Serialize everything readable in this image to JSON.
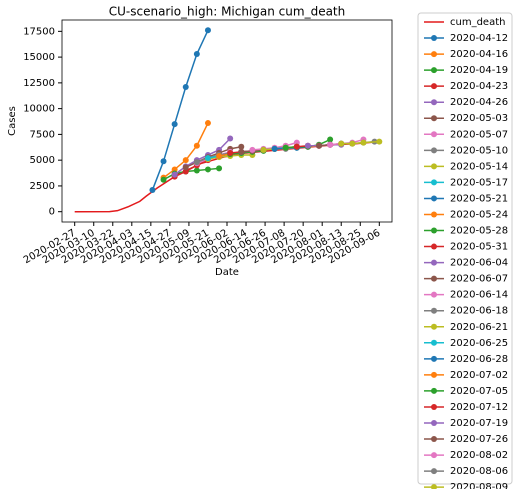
{
  "chart_data": {
    "type": "line",
    "title": "CU-scenario_high: Michigan cum_death",
    "xlabel": "Date",
    "ylabel": "Cases",
    "xlim": [
      "2020-02-19",
      "2020-09-14"
    ],
    "ylim": [
      -1000,
      18600
    ],
    "xticks": [
      "2020-02-27",
      "2020-03-10",
      "2020-03-22",
      "2020-04-03",
      "2020-04-15",
      "2020-04-27",
      "2020-05-09",
      "2020-05-21",
      "2020-06-02",
      "2020-06-14",
      "2020-06-26",
      "2020-07-08",
      "2020-07-20",
      "2020-08-01",
      "2020-08-13",
      "2020-08-25",
      "2020-09-06"
    ],
    "yticks": [
      0,
      2500,
      5000,
      7500,
      10000,
      12500,
      15000,
      17500
    ],
    "grid": false,
    "legend": "outside upper right",
    "series": [
      {
        "name": "cum_death",
        "color": "#e31a1c",
        "markers": false,
        "x": [
          "2020-02-27",
          "2020-03-20",
          "2020-03-25",
          "2020-04-01",
          "2020-04-08",
          "2020-04-12",
          "2020-04-19",
          "2020-04-26",
          "2020-05-03",
          "2020-05-10",
          "2020-05-17",
          "2020-05-31",
          "2020-06-14",
          "2020-06-28",
          "2020-07-12",
          "2020-07-26",
          "2020-08-09",
          "2020-08-23",
          "2020-09-06"
        ],
        "values": [
          0,
          10,
          100,
          500,
          1000,
          1500,
          2300,
          3000,
          3700,
          4200,
          4700,
          5300,
          5700,
          5900,
          6100,
          6300,
          6500,
          6600,
          6800
        ]
      },
      {
        "name": "2020-04-12",
        "color": "#1f77b4",
        "markers": true,
        "x": [
          "2020-04-16",
          "2020-04-23",
          "2020-04-30",
          "2020-05-07",
          "2020-05-14",
          "2020-05-21"
        ],
        "values": [
          2100,
          4900,
          8500,
          12100,
          15300,
          17600
        ]
      },
      {
        "name": "2020-04-16",
        "color": "#ff7f0e",
        "markers": true,
        "x": [
          "2020-04-23",
          "2020-04-30",
          "2020-05-07",
          "2020-05-14",
          "2020-05-21"
        ],
        "values": [
          3300,
          4100,
          5000,
          6400,
          8600
        ]
      },
      {
        "name": "2020-04-19",
        "color": "#2ca02c",
        "markers": true,
        "x": [
          "2020-04-23",
          "2020-04-30",
          "2020-05-07",
          "2020-05-14",
          "2020-05-21",
          "2020-05-28"
        ],
        "values": [
          3100,
          3700,
          3900,
          4000,
          4100,
          4200
        ]
      },
      {
        "name": "2020-04-23",
        "color": "#d62728",
        "markers": true,
        "x": [
          "2020-04-30",
          "2020-05-07",
          "2020-05-14",
          "2020-05-21"
        ],
        "values": [
          3400,
          3900,
          4500,
          5000
        ]
      },
      {
        "name": "2020-04-26",
        "color": "#9467bd",
        "markers": true,
        "x": [
          "2020-04-30",
          "2020-05-07",
          "2020-05-14",
          "2020-05-21",
          "2020-05-28",
          "2020-06-04"
        ],
        "values": [
          3600,
          4400,
          5000,
          5500,
          6000,
          7100
        ]
      },
      {
        "name": "2020-05-03",
        "color": "#8c564b",
        "markers": true,
        "x": [
          "2020-05-07",
          "2020-05-14",
          "2020-05-21",
          "2020-05-28",
          "2020-06-04",
          "2020-06-11"
        ],
        "values": [
          4300,
          4800,
          5300,
          5700,
          6100,
          6300
        ]
      },
      {
        "name": "2020-05-07",
        "color": "#e377c2",
        "markers": true,
        "x": [
          "2020-05-14",
          "2020-05-21",
          "2020-05-28",
          "2020-06-04"
        ],
        "values": [
          4700,
          5100,
          5500,
          5800
        ]
      },
      {
        "name": "2020-05-10",
        "color": "#7f7f7f",
        "markers": true,
        "x": [
          "2020-05-14",
          "2020-05-21",
          "2020-05-28",
          "2020-06-04"
        ],
        "values": [
          4800,
          5200,
          5500,
          5700
        ]
      },
      {
        "name": "2020-05-14",
        "color": "#bcbd22",
        "markers": true,
        "x": [
          "2020-05-21",
          "2020-05-28",
          "2020-06-04",
          "2020-06-11",
          "2020-06-18"
        ],
        "values": [
          5100,
          5300,
          5400,
          5500,
          5500
        ]
      },
      {
        "name": "2020-05-17",
        "color": "#17becf",
        "markers": true,
        "x": [
          "2020-05-21",
          "2020-05-28",
          "2020-06-04",
          "2020-06-11"
        ],
        "values": [
          5200,
          5400,
          5600,
          5700
        ]
      },
      {
        "name": "2020-05-21",
        "color": "#1f77b4",
        "markers": true,
        "x": [
          "2020-05-28",
          "2020-06-04",
          "2020-06-11",
          "2020-06-18"
        ],
        "values": [
          5400,
          5600,
          5800,
          5900
        ]
      },
      {
        "name": "2020-05-24",
        "color": "#ff7f0e",
        "markers": true,
        "x": [
          "2020-05-28",
          "2020-06-04",
          "2020-06-11",
          "2020-06-18"
        ],
        "values": [
          5400,
          5600,
          5800,
          5900
        ]
      },
      {
        "name": "2020-05-28",
        "color": "#2ca02c",
        "markers": true,
        "x": [
          "2020-06-04",
          "2020-06-11",
          "2020-06-18",
          "2020-06-25"
        ],
        "values": [
          5600,
          5700,
          5800,
          5900
        ]
      },
      {
        "name": "2020-05-31",
        "color": "#d62728",
        "markers": true,
        "x": [
          "2020-06-04",
          "2020-06-11",
          "2020-06-18",
          "2020-06-25"
        ],
        "values": [
          5700,
          5800,
          5900,
          6000
        ]
      },
      {
        "name": "2020-06-04",
        "color": "#9467bd",
        "markers": true,
        "x": [
          "2020-06-11",
          "2020-06-18",
          "2020-06-25",
          "2020-07-02"
        ],
        "values": [
          5800,
          5900,
          6000,
          6100
        ]
      },
      {
        "name": "2020-06-07",
        "color": "#8c564b",
        "markers": true,
        "x": [
          "2020-06-11",
          "2020-06-18",
          "2020-06-25",
          "2020-07-02"
        ],
        "values": [
          5800,
          5900,
          6000,
          6100
        ]
      },
      {
        "name": "2020-06-14",
        "color": "#e377c2",
        "markers": true,
        "x": [
          "2020-06-18",
          "2020-06-25",
          "2020-07-02",
          "2020-07-09",
          "2020-07-16"
        ],
        "values": [
          6000,
          6100,
          6200,
          6400,
          6700
        ]
      },
      {
        "name": "2020-06-18",
        "color": "#7f7f7f",
        "markers": true,
        "x": [
          "2020-06-25",
          "2020-07-02",
          "2020-07-09",
          "2020-07-16"
        ],
        "values": [
          6000,
          6100,
          6100,
          6200
        ]
      },
      {
        "name": "2020-06-21",
        "color": "#bcbd22",
        "markers": true,
        "x": [
          "2020-06-25",
          "2020-07-02",
          "2020-07-09",
          "2020-07-16"
        ],
        "values": [
          6000,
          6100,
          6200,
          6300
        ]
      },
      {
        "name": "2020-06-25",
        "color": "#17becf",
        "markers": true,
        "x": [
          "2020-07-02",
          "2020-07-09",
          "2020-07-16",
          "2020-07-23"
        ],
        "values": [
          6100,
          6200,
          6200,
          6300
        ]
      },
      {
        "name": "2020-06-28",
        "color": "#1f77b4",
        "markers": true,
        "x": [
          "2020-07-02",
          "2020-07-09",
          "2020-07-16",
          "2020-07-23"
        ],
        "values": [
          6100,
          6200,
          6200,
          6300
        ]
      },
      {
        "name": "2020-07-02",
        "color": "#ff7f0e",
        "markers": true,
        "x": [
          "2020-07-09",
          "2020-07-16",
          "2020-07-23",
          "2020-07-30"
        ],
        "values": [
          6200,
          6300,
          6300,
          6400
        ]
      },
      {
        "name": "2020-07-05",
        "color": "#2ca02c",
        "markers": true,
        "x": [
          "2020-07-09",
          "2020-07-16",
          "2020-07-23",
          "2020-07-30",
          "2020-08-06"
        ],
        "values": [
          6200,
          6300,
          6300,
          6500,
          7000
        ]
      },
      {
        "name": "2020-07-12",
        "color": "#d62728",
        "markers": true,
        "x": [
          "2020-07-16",
          "2020-07-23",
          "2020-07-30",
          "2020-08-06"
        ],
        "values": [
          6300,
          6400,
          6400,
          6500
        ]
      },
      {
        "name": "2020-07-19",
        "color": "#9467bd",
        "markers": true,
        "x": [
          "2020-07-23",
          "2020-07-30",
          "2020-08-06",
          "2020-08-13"
        ],
        "values": [
          6400,
          6400,
          6500,
          6500
        ]
      },
      {
        "name": "2020-07-26",
        "color": "#8c564b",
        "markers": true,
        "x": [
          "2020-07-30",
          "2020-08-06",
          "2020-08-13",
          "2020-08-20"
        ],
        "values": [
          6400,
          6500,
          6600,
          6600
        ]
      },
      {
        "name": "2020-08-02",
        "color": "#e377c2",
        "markers": true,
        "x": [
          "2020-08-06",
          "2020-08-13",
          "2020-08-20",
          "2020-08-27"
        ],
        "values": [
          6500,
          6600,
          6700,
          7000
        ]
      },
      {
        "name": "2020-08-06",
        "color": "#7f7f7f",
        "markers": true,
        "x": [
          "2020-08-13",
          "2020-08-20",
          "2020-08-27",
          "2020-09-03"
        ],
        "values": [
          6600,
          6600,
          6700,
          6800
        ]
      },
      {
        "name": "2020-08-09",
        "color": "#bcbd22",
        "markers": true,
        "x": [
          "2020-08-13",
          "2020-08-20",
          "2020-08-27",
          "2020-09-06"
        ],
        "values": [
          6600,
          6600,
          6700,
          6800
        ]
      }
    ]
  }
}
